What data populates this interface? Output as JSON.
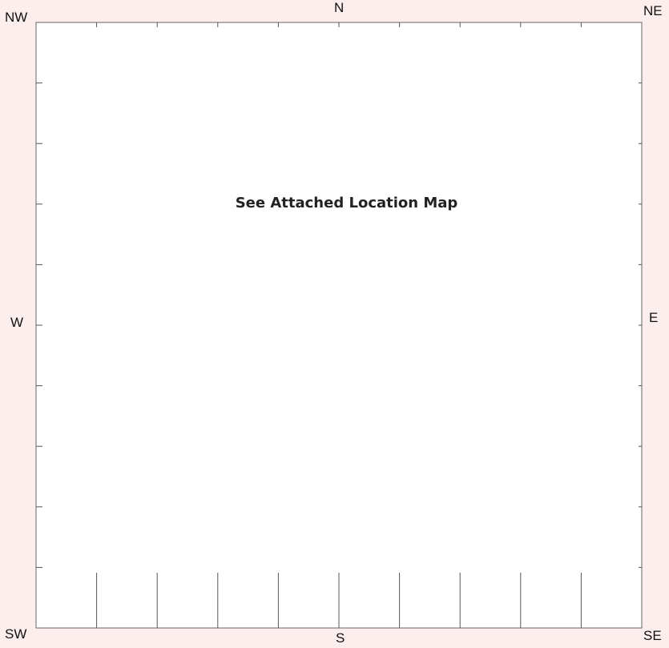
{
  "compass": {
    "nw": "NW",
    "n": "N",
    "ne": "NE",
    "w": "W",
    "e": "E",
    "sw": "SW",
    "s": "S",
    "se": "SE"
  },
  "map": {
    "message": "See Attached Location Map"
  },
  "colors": {
    "background": "#fdeeee",
    "panel": "#ffffff",
    "line": "#555555"
  }
}
